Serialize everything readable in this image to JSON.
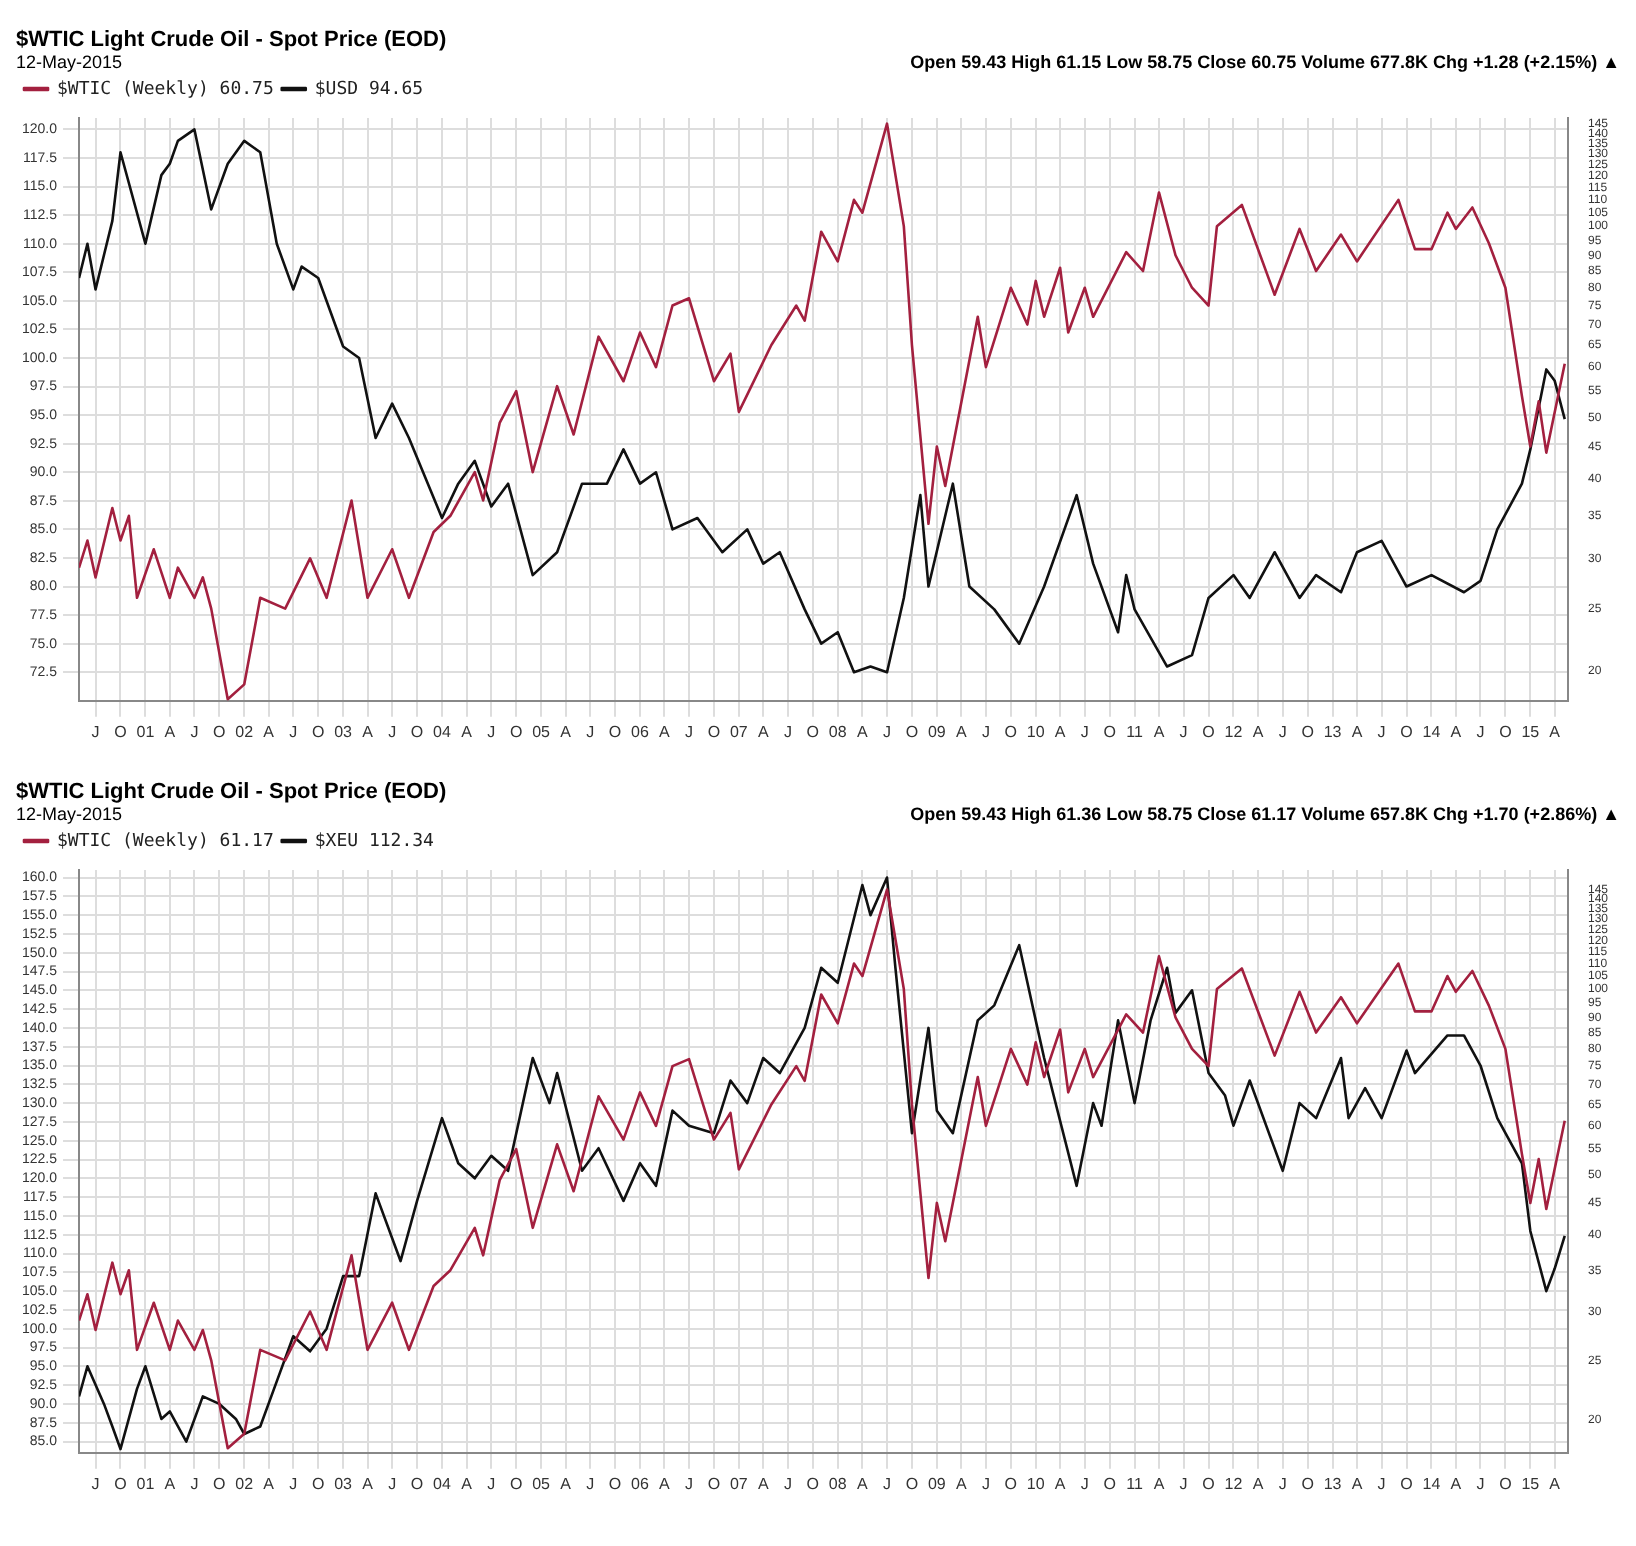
{
  "chart_data": [
    {
      "type": "line",
      "title": "$WTIC Light Crude Oil - Spot Price (EOD)",
      "subtitle": "12-May-2015",
      "annotations": [
        "Open 59.43 High 61.15 Low 58.75 Close 60.75 Volume 677.8K Chg +1.28 (+2.15%) ▲"
      ],
      "legend": "top left",
      "grid": true,
      "log": "y2",
      "xlim": [
        "2000-05-01",
        "2015-05-20"
      ],
      "xticks": [
        {
          "value": "2000-07",
          "label": "J"
        },
        {
          "value": "2000-10",
          "label": "O"
        },
        {
          "value": "2001-01",
          "label": "01"
        },
        {
          "value": "2001-04",
          "label": "A"
        },
        {
          "value": "2001-07",
          "label": "J"
        },
        {
          "value": "2001-10",
          "label": "O"
        },
        {
          "value": "2002-01",
          "label": "02"
        },
        {
          "value": "2002-04",
          "label": "A"
        },
        {
          "value": "2002-07",
          "label": "J"
        },
        {
          "value": "2002-10",
          "label": "O"
        },
        {
          "value": "2003-01",
          "label": "03"
        },
        {
          "value": "2003-04",
          "label": "A"
        },
        {
          "value": "2003-07",
          "label": "J"
        },
        {
          "value": "2003-10",
          "label": "O"
        },
        {
          "value": "2004-01",
          "label": "04"
        },
        {
          "value": "2004-04",
          "label": "A"
        },
        {
          "value": "2004-07",
          "label": "J"
        },
        {
          "value": "2004-10",
          "label": "O"
        },
        {
          "value": "2005-01",
          "label": "05"
        },
        {
          "value": "2005-04",
          "label": "A"
        },
        {
          "value": "2005-07",
          "label": "J"
        },
        {
          "value": "2005-10",
          "label": "O"
        },
        {
          "value": "2006-01",
          "label": "06"
        },
        {
          "value": "2006-04",
          "label": "A"
        },
        {
          "value": "2006-07",
          "label": "J"
        },
        {
          "value": "2006-10",
          "label": "O"
        },
        {
          "value": "2007-01",
          "label": "07"
        },
        {
          "value": "2007-04",
          "label": "A"
        },
        {
          "value": "2007-07",
          "label": "J"
        },
        {
          "value": "2007-10",
          "label": "O"
        },
        {
          "value": "2008-01",
          "label": "08"
        },
        {
          "value": "2008-04",
          "label": "A"
        },
        {
          "value": "2008-07",
          "label": "J"
        },
        {
          "value": "2008-10",
          "label": "O"
        },
        {
          "value": "2009-01",
          "label": "09"
        },
        {
          "value": "2009-04",
          "label": "A"
        },
        {
          "value": "2009-07",
          "label": "J"
        },
        {
          "value": "2009-10",
          "label": "O"
        },
        {
          "value": "2010-01",
          "label": "10"
        },
        {
          "value": "2010-04",
          "label": "A"
        },
        {
          "value": "2010-07",
          "label": "J"
        },
        {
          "value": "2010-10",
          "label": "O"
        },
        {
          "value": "2011-01",
          "label": "11"
        },
        {
          "value": "2011-04",
          "label": "A"
        },
        {
          "value": "2011-07",
          "label": "J"
        },
        {
          "value": "2011-10",
          "label": "O"
        },
        {
          "value": "2012-01",
          "label": "12"
        },
        {
          "value": "2012-04",
          "label": "A"
        },
        {
          "value": "2012-07",
          "label": "J"
        },
        {
          "value": "2012-10",
          "label": "O"
        },
        {
          "value": "2013-01",
          "label": "13"
        },
        {
          "value": "2013-04",
          "label": "A"
        },
        {
          "value": "2013-07",
          "label": "J"
        },
        {
          "value": "2013-10",
          "label": "O"
        },
        {
          "value": "2014-01",
          "label": "14"
        },
        {
          "value": "2014-04",
          "label": "A"
        },
        {
          "value": "2014-07",
          "label": "J"
        },
        {
          "value": "2014-10",
          "label": "O"
        },
        {
          "value": "2015-01",
          "label": "15"
        },
        {
          "value": "2015-04",
          "label": "A"
        }
      ],
      "ylim": [
        70,
        121
      ],
      "yticks": [
        72.5,
        {
          "value": 75,
          "label": "75.0"
        },
        77.5,
        {
          "value": 80,
          "label": "80.0"
        },
        82.5,
        {
          "value": 85,
          "label": "85.0"
        },
        87.5,
        {
          "value": 90,
          "label": "90.0"
        },
        92.5,
        {
          "value": 95,
          "label": "95.0"
        },
        97.5,
        {
          "value": 100,
          "label": "100.0"
        },
        102.5,
        {
          "value": 105,
          "label": "105.0"
        },
        107.5,
        {
          "value": 110,
          "label": "110.0"
        },
        112.5,
        {
          "value": 115,
          "label": "115.0"
        },
        117.5,
        {
          "value": 120,
          "label": "120.0"
        }
      ],
      "y2lim": [
        17.9,
        148
      ],
      "y2ticks": [
        20,
        25,
        30,
        35,
        40,
        45,
        50,
        55,
        60,
        65,
        70,
        75,
        80,
        85,
        90,
        95,
        100,
        105,
        110,
        115,
        120,
        125,
        130,
        135,
        140,
        145
      ],
      "series": [
        {
          "name": "$WTIC (Weekly) 60.75",
          "color": "#a3203f",
          "axis": "y2",
          "x": [
            "2000-05",
            "2000-06",
            "2000-07",
            "2000-09",
            "2000-10",
            "2000-11",
            "2000-12",
            "2001-02",
            "2001-04",
            "2001-05",
            "2001-07",
            "2001-08",
            "2001-09",
            "2001-11",
            "2002-01",
            "2002-03",
            "2002-06",
            "2002-09",
            "2002-11",
            "2003-02",
            "2003-04",
            "2003-07",
            "2003-09",
            "2003-12",
            "2004-02",
            "2004-05",
            "2004-06",
            "2004-08",
            "2004-10",
            "2004-12",
            "2005-03",
            "2005-05",
            "2005-08",
            "2005-11",
            "2006-01",
            "2006-03",
            "2006-05",
            "2006-07",
            "2006-10",
            "2006-12",
            "2007-01",
            "2007-05",
            "2007-08",
            "2007-09",
            "2007-11",
            "2008-01",
            "2008-03",
            "2008-04",
            "2008-07",
            "2008-09",
            "2008-10",
            "2008-12",
            "2009-01",
            "2009-02",
            "2009-06",
            "2009-07",
            "2009-10",
            "2009-12",
            "2010-01",
            "2010-02",
            "2010-04",
            "2010-05",
            "2010-07",
            "2010-08",
            "2010-12",
            "2011-02",
            "2011-04",
            "2011-06",
            "2011-08",
            "2011-10",
            "2011-11",
            "2012-02",
            "2012-06",
            "2012-09",
            "2012-11",
            "2013-02",
            "2013-04",
            "2013-09",
            "2013-11",
            "2014-01",
            "2014-03",
            "2014-04",
            "2014-06",
            "2014-08",
            "2014-10",
            "2014-12",
            "2015-01",
            "2015-02",
            "2015-03",
            "2015-05-08"
          ],
          "values": [
            29,
            32,
            28,
            36,
            32,
            35,
            26,
            31,
            26,
            29,
            26,
            28,
            25,
            18,
            19,
            26,
            25,
            30,
            26,
            37,
            26,
            31,
            26,
            33,
            35,
            41,
            37,
            49,
            55,
            41,
            56,
            47,
            67,
            57,
            68,
            60,
            75,
            77,
            57,
            63,
            51,
            65,
            75,
            71,
            98,
            88,
            110,
            105,
            145,
            100,
            65,
            34,
            45,
            39,
            72,
            60,
            80,
            70,
            82,
            72,
            86,
            68,
            80,
            72,
            91,
            85,
            113,
            90,
            80,
            75,
            100,
            108,
            78,
            99,
            85,
            97,
            88,
            110,
            92,
            92,
            105,
            99,
            107,
            94,
            80,
            54,
            45,
            53,
            44,
            60.75
          ]
        },
        {
          "name": "$USD 94.65",
          "color": "#111111",
          "axis": "y",
          "x": [
            "2000-05",
            "2000-06",
            "2000-07",
            "2000-09",
            "2000-10",
            "2001-01",
            "2001-03",
            "2001-04",
            "2001-05",
            "2001-07",
            "2001-09",
            "2001-11",
            "2002-01",
            "2002-03",
            "2002-05",
            "2002-07",
            "2002-08",
            "2002-10",
            "2003-01",
            "2003-03",
            "2003-05",
            "2003-07",
            "2003-09",
            "2004-01",
            "2004-03",
            "2004-05",
            "2004-07",
            "2004-09",
            "2004-12",
            "2005-03",
            "2005-06",
            "2005-09",
            "2005-11",
            "2006-01",
            "2006-03",
            "2006-05",
            "2006-08",
            "2006-11",
            "2007-02",
            "2007-04",
            "2007-06",
            "2007-09",
            "2007-11",
            "2008-01",
            "2008-03",
            "2008-05",
            "2008-07",
            "2008-09",
            "2008-11",
            "2008-12",
            "2009-03",
            "2009-05",
            "2009-08",
            "2009-11",
            "2010-02",
            "2010-06",
            "2010-08",
            "2010-11",
            "2010-12",
            "2011-01",
            "2011-05",
            "2011-08",
            "2011-10",
            "2012-01",
            "2012-03",
            "2012-06",
            "2012-09",
            "2012-11",
            "2013-02",
            "2013-04",
            "2013-07",
            "2013-10",
            "2014-01",
            "2014-05",
            "2014-07",
            "2014-09",
            "2014-12",
            "2015-01",
            "2015-03",
            "2015-04",
            "2015-05-08"
          ],
          "values": [
            107,
            110,
            106,
            112,
            118,
            110,
            116,
            117,
            119,
            120,
            113,
            117,
            119,
            118,
            110,
            106,
            108,
            107,
            101,
            100,
            93,
            96,
            93,
            86,
            89,
            91,
            87,
            89,
            81,
            83,
            89,
            89,
            92,
            89,
            90,
            85,
            86,
            83,
            85,
            82,
            83,
            78,
            75,
            76,
            72.5,
            73,
            72.5,
            79,
            88,
            80,
            89,
            80,
            78,
            75,
            80,
            88,
            82,
            76,
            81,
            78,
            73,
            74,
            79,
            81,
            79,
            83,
            79,
            81,
            79.5,
            83,
            84,
            80,
            81,
            79.5,
            80.5,
            85,
            89,
            92,
            99,
            98,
            94.65
          ]
        }
      ]
    },
    {
      "type": "line",
      "title": "$WTIC Light Crude Oil - Spot Price (EOD)",
      "subtitle": "12-May-2015",
      "annotations": [
        "Open 59.43 High 61.36 Low 58.75 Close 61.17 Volume 657.8K Chg +1.70 (+2.86%) ▲"
      ],
      "legend": "top left",
      "grid": true,
      "log": "y2",
      "xlim": [
        "2000-05-01",
        "2015-05-20"
      ],
      "xticks": [
        {
          "value": "2000-07",
          "label": "J"
        },
        {
          "value": "2000-10",
          "label": "O"
        },
        {
          "value": "2001-01",
          "label": "01"
        },
        {
          "value": "2001-04",
          "label": "A"
        },
        {
          "value": "2001-07",
          "label": "J"
        },
        {
          "value": "2001-10",
          "label": "O"
        },
        {
          "value": "2002-01",
          "label": "02"
        },
        {
          "value": "2002-04",
          "label": "A"
        },
        {
          "value": "2002-07",
          "label": "J"
        },
        {
          "value": "2002-10",
          "label": "O"
        },
        {
          "value": "2003-01",
          "label": "03"
        },
        {
          "value": "2003-04",
          "label": "A"
        },
        {
          "value": "2003-07",
          "label": "J"
        },
        {
          "value": "2003-10",
          "label": "O"
        },
        {
          "value": "2004-01",
          "label": "04"
        },
        {
          "value": "2004-04",
          "label": "A"
        },
        {
          "value": "2004-07",
          "label": "J"
        },
        {
          "value": "2004-10",
          "label": "O"
        },
        {
          "value": "2005-01",
          "label": "05"
        },
        {
          "value": "2005-04",
          "label": "A"
        },
        {
          "value": "2005-07",
          "label": "J"
        },
        {
          "value": "2005-10",
          "label": "O"
        },
        {
          "value": "2006-01",
          "label": "06"
        },
        {
          "value": "2006-04",
          "label": "A"
        },
        {
          "value": "2006-07",
          "label": "J"
        },
        {
          "value": "2006-10",
          "label": "O"
        },
        {
          "value": "2007-01",
          "label": "07"
        },
        {
          "value": "2007-04",
          "label": "A"
        },
        {
          "value": "2007-07",
          "label": "J"
        },
        {
          "value": "2007-10",
          "label": "O"
        },
        {
          "value": "2008-01",
          "label": "08"
        },
        {
          "value": "2008-04",
          "label": "A"
        },
        {
          "value": "2008-07",
          "label": "J"
        },
        {
          "value": "2008-10",
          "label": "O"
        },
        {
          "value": "2009-01",
          "label": "09"
        },
        {
          "value": "2009-04",
          "label": "A"
        },
        {
          "value": "2009-07",
          "label": "J"
        },
        {
          "value": "2009-10",
          "label": "O"
        },
        {
          "value": "2010-01",
          "label": "10"
        },
        {
          "value": "2010-04",
          "label": "A"
        },
        {
          "value": "2010-07",
          "label": "J"
        },
        {
          "value": "2010-10",
          "label": "O"
        },
        {
          "value": "2011-01",
          "label": "11"
        },
        {
          "value": "2011-04",
          "label": "A"
        },
        {
          "value": "2011-07",
          "label": "J"
        },
        {
          "value": "2011-10",
          "label": "O"
        },
        {
          "value": "2012-01",
          "label": "12"
        },
        {
          "value": "2012-04",
          "label": "A"
        },
        {
          "value": "2012-07",
          "label": "J"
        },
        {
          "value": "2012-10",
          "label": "O"
        },
        {
          "value": "2013-01",
          "label": "13"
        },
        {
          "value": "2013-04",
          "label": "A"
        },
        {
          "value": "2013-07",
          "label": "J"
        },
        {
          "value": "2013-10",
          "label": "O"
        },
        {
          "value": "2014-01",
          "label": "14"
        },
        {
          "value": "2014-04",
          "label": "A"
        },
        {
          "value": "2014-07",
          "label": "J"
        },
        {
          "value": "2014-10",
          "label": "O"
        },
        {
          "value": "2015-01",
          "label": "15"
        },
        {
          "value": "2015-04",
          "label": "A"
        }
      ],
      "ylim": [
        83.5,
        161
      ],
      "yticks": [
        {
          "value": 85,
          "label": "85.0"
        },
        87.5,
        {
          "value": 90,
          "label": "90.0"
        },
        92.5,
        {
          "value": 95,
          "label": "95.0"
        },
        97.5,
        {
          "value": 100,
          "label": "100.0"
        },
        102.5,
        {
          "value": 105,
          "label": "105.0"
        },
        107.5,
        {
          "value": 110,
          "label": "110.0"
        },
        112.5,
        {
          "value": 115,
          "label": "115.0"
        },
        117.5,
        {
          "value": 120,
          "label": "120.0"
        },
        122.5,
        {
          "value": 125,
          "label": "125.0"
        },
        127.5,
        {
          "value": 130,
          "label": "130.0"
        },
        132.5,
        {
          "value": 135,
          "label": "135.0"
        },
        137.5,
        {
          "value": 140,
          "label": "140.0"
        },
        142.5,
        {
          "value": 145,
          "label": "145.0"
        },
        147.5,
        {
          "value": 150,
          "label": "150.0"
        },
        152.5,
        {
          "value": 155,
          "label": "155.0"
        },
        157.5,
        {
          "value": 160,
          "label": "160.0"
        }
      ],
      "y2lim": [
        17.7,
        156
      ],
      "y2ticks": [
        20,
        25,
        30,
        35,
        40,
        45,
        50,
        55,
        60,
        65,
        70,
        75,
        80,
        85,
        90,
        95,
        100,
        105,
        110,
        115,
        120,
        125,
        130,
        135,
        140,
        145
      ],
      "series": [
        {
          "name": "$WTIC (Weekly) 61.17",
          "color": "#a3203f",
          "axis": "y2",
          "x": [
            "2000-05",
            "2000-06",
            "2000-07",
            "2000-09",
            "2000-10",
            "2000-11",
            "2000-12",
            "2001-02",
            "2001-04",
            "2001-05",
            "2001-07",
            "2001-08",
            "2001-09",
            "2001-11",
            "2002-01",
            "2002-03",
            "2002-06",
            "2002-09",
            "2002-11",
            "2003-02",
            "2003-04",
            "2003-07",
            "2003-09",
            "2003-12",
            "2004-02",
            "2004-05",
            "2004-06",
            "2004-08",
            "2004-10",
            "2004-12",
            "2005-03",
            "2005-05",
            "2005-08",
            "2005-11",
            "2006-01",
            "2006-03",
            "2006-05",
            "2006-07",
            "2006-10",
            "2006-12",
            "2007-01",
            "2007-05",
            "2007-08",
            "2007-09",
            "2007-11",
            "2008-01",
            "2008-03",
            "2008-04",
            "2008-07",
            "2008-09",
            "2008-10",
            "2008-12",
            "2009-01",
            "2009-02",
            "2009-06",
            "2009-07",
            "2009-10",
            "2009-12",
            "2010-01",
            "2010-02",
            "2010-04",
            "2010-05",
            "2010-07",
            "2010-08",
            "2010-12",
            "2011-02",
            "2011-04",
            "2011-06",
            "2011-08",
            "2011-10",
            "2011-11",
            "2012-02",
            "2012-06",
            "2012-09",
            "2012-11",
            "2013-02",
            "2013-04",
            "2013-09",
            "2013-11",
            "2014-01",
            "2014-03",
            "2014-04",
            "2014-06",
            "2014-08",
            "2014-10",
            "2014-12",
            "2015-01",
            "2015-02",
            "2015-03",
            "2015-05-08"
          ],
          "values": [
            29,
            32,
            28,
            36,
            32,
            35,
            26,
            31,
            26,
            29,
            26,
            28,
            25,
            18,
            19,
            26,
            25,
            30,
            26,
            37,
            26,
            31,
            26,
            33,
            35,
            41,
            37,
            49,
            55,
            41,
            56,
            47,
            67,
            57,
            68,
            60,
            75,
            77,
            57,
            63,
            51,
            65,
            75,
            71,
            98,
            88,
            110,
            105,
            145,
            100,
            65,
            34,
            45,
            39,
            72,
            60,
            80,
            70,
            82,
            72,
            86,
            68,
            80,
            72,
            91,
            85,
            113,
            90,
            80,
            75,
            100,
            108,
            78,
            99,
            85,
            97,
            88,
            110,
            92,
            92,
            105,
            99,
            107,
            94,
            80,
            54,
            45,
            53,
            44,
            61.17
          ]
        },
        {
          "name": "$XEU 112.34",
          "color": "#111111",
          "axis": "y",
          "x": [
            "2000-05",
            "2000-06",
            "2000-08",
            "2000-09",
            "2000-10",
            "2000-12",
            "2001-01",
            "2001-03",
            "2001-04",
            "2001-06",
            "2001-08",
            "2001-10",
            "2001-12",
            "2002-01",
            "2002-03",
            "2002-05",
            "2002-07",
            "2002-09",
            "2002-11",
            "2003-01",
            "2003-03",
            "2003-05",
            "2003-08",
            "2003-10",
            "2004-01",
            "2004-03",
            "2004-05",
            "2004-07",
            "2004-09",
            "2004-12",
            "2005-02",
            "2005-03",
            "2005-06",
            "2005-08",
            "2005-11",
            "2006-01",
            "2006-03",
            "2006-05",
            "2006-07",
            "2006-10",
            "2006-12",
            "2007-02",
            "2007-04",
            "2007-06",
            "2007-09",
            "2007-11",
            "2008-01",
            "2008-04",
            "2008-05",
            "2008-07",
            "2008-08",
            "2008-10",
            "2008-12",
            "2009-01",
            "2009-03",
            "2009-06",
            "2009-08",
            "2009-11",
            "2010-01",
            "2010-02",
            "2010-06",
            "2010-08",
            "2010-09",
            "2010-11",
            "2011-01",
            "2011-03",
            "2011-05",
            "2011-06",
            "2011-08",
            "2011-10",
            "2011-12",
            "2012-01",
            "2012-03",
            "2012-07",
            "2012-09",
            "2012-11",
            "2013-02",
            "2013-03",
            "2013-05",
            "2013-07",
            "2013-10",
            "2013-11",
            "2014-03",
            "2014-05",
            "2014-07",
            "2014-09",
            "2014-12",
            "2015-01",
            "2015-03",
            "2015-04",
            "2015-05-08"
          ],
          "values": [
            91,
            95,
            90,
            87,
            84,
            92,
            95,
            88,
            89,
            85,
            91,
            90,
            88,
            86,
            87,
            93,
            99,
            97,
            100,
            107,
            107,
            118,
            109,
            117,
            128,
            122,
            120,
            123,
            121,
            136,
            130,
            134,
            121,
            124,
            117,
            122,
            119,
            129,
            127,
            126,
            133,
            130,
            136,
            134,
            140,
            148,
            146,
            159,
            155,
            160,
            148,
            126,
            140,
            129,
            126,
            141,
            143,
            151,
            141,
            136,
            119,
            130,
            127,
            141,
            130,
            141,
            148,
            142,
            145,
            134,
            131,
            127,
            133,
            121,
            130,
            128,
            136,
            128,
            132,
            128,
            137,
            134,
            139,
            139,
            135,
            128,
            122,
            113,
            105,
            108,
            112.34
          ]
        }
      ]
    }
  ]
}
